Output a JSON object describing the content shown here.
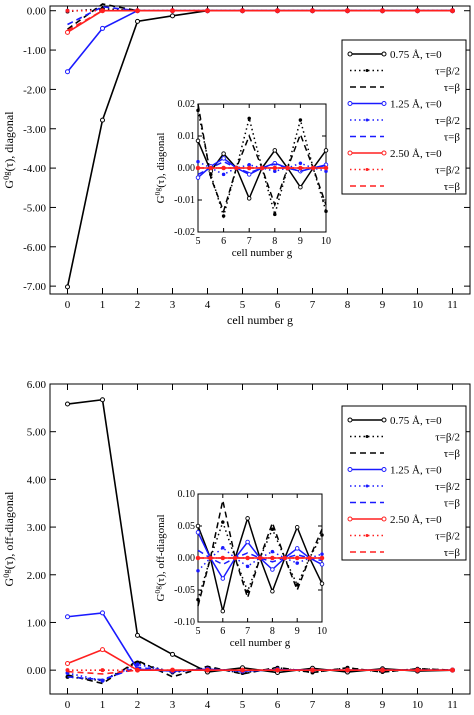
{
  "colors": {
    "black": "#000000",
    "blue": "#1a1aff",
    "red": "#ff2020"
  },
  "chart_data": [
    {
      "type": "line",
      "xlabel": "cell number g",
      "ylabel": "G^{0g}(τ), diagonal",
      "ylabel_parts": [
        "G",
        "0g",
        "(τ), diagonal"
      ],
      "xlim": [
        -0.5,
        11.5
      ],
      "ylim": [
        -7.2,
        0.12
      ],
      "xticks": [
        "0",
        "1",
        "2",
        "3",
        "4",
        "5",
        "6",
        "7",
        "8",
        "9",
        "10",
        "11"
      ],
      "yticks": [
        "0.00",
        "-1.00",
        "-2.00",
        "-3.00",
        "-4.00",
        "-5.00",
        "-6.00",
        "-7.00"
      ],
      "legend": [
        {
          "label": "0.75 Å, τ=0",
          "color": "#000000",
          "dash": "solid",
          "marker": "circle"
        },
        {
          "label": "τ=β/2",
          "color": "#000000",
          "dash": "dotted",
          "marker": "dot"
        },
        {
          "label": "τ=β",
          "color": "#000000",
          "dash": "dashed",
          "marker": "none"
        },
        {
          "label": "1.25 Å, τ=0",
          "color": "#1a1aff",
          "dash": "solid",
          "marker": "circle"
        },
        {
          "label": "τ=β/2",
          "color": "#1a1aff",
          "dash": "dotted",
          "marker": "dot"
        },
        {
          "label": "τ=β",
          "color": "#1a1aff",
          "dash": "dashed",
          "marker": "none"
        },
        {
          "label": "2.50 Å, τ=0",
          "color": "#ff2020",
          "dash": "solid",
          "marker": "circle"
        },
        {
          "label": "τ=β/2",
          "color": "#ff2020",
          "dash": "dotted",
          "marker": "dot"
        },
        {
          "label": "τ=β",
          "color": "#ff2020",
          "dash": "dashed",
          "marker": "none"
        }
      ],
      "x": [
        0,
        1,
        2,
        3,
        4,
        5,
        6,
        7,
        8,
        9,
        10,
        11
      ],
      "series": [
        {
          "color": "#000000",
          "dash": "solid",
          "values": [
            -7.02,
            -2.78,
            -0.27,
            -0.13,
            0.0,
            0.0,
            0.0,
            0.0,
            0.0,
            0.0,
            0.0,
            0.0
          ]
        },
        {
          "color": "#000000",
          "dash": "dotted",
          "values": [
            -0.02,
            0.05,
            0.0,
            0.0,
            0.0,
            0.0,
            0.0,
            0.0,
            0.0,
            0.0,
            0.0,
            0.0
          ]
        },
        {
          "color": "#000000",
          "dash": "dashed",
          "values": [
            -0.47,
            0.17,
            0.0,
            0.0,
            0.0,
            0.0,
            0.0,
            0.0,
            0.0,
            0.0,
            0.0,
            0.0
          ]
        },
        {
          "color": "#1a1aff",
          "dash": "solid",
          "values": [
            -1.55,
            -0.45,
            0.0,
            0.0,
            0.0,
            0.0,
            0.0,
            0.0,
            0.0,
            0.0,
            0.0,
            0.0
          ]
        },
        {
          "color": "#1a1aff",
          "dash": "dotted",
          "values": [
            0.0,
            0.0,
            0.0,
            0.0,
            0.0,
            0.0,
            0.0,
            0.0,
            0.0,
            0.0,
            0.0,
            0.0
          ]
        },
        {
          "color": "#1a1aff",
          "dash": "dashed",
          "values": [
            -0.35,
            0.1,
            0.0,
            0.0,
            0.0,
            0.0,
            0.0,
            0.0,
            0.0,
            0.0,
            0.0,
            0.0
          ]
        },
        {
          "color": "#ff2020",
          "dash": "solid",
          "values": [
            -0.55,
            0.0,
            0.0,
            0.0,
            0.0,
            0.0,
            0.0,
            0.0,
            0.0,
            0.0,
            0.0,
            0.0
          ]
        },
        {
          "color": "#ff2020",
          "dash": "dotted",
          "values": [
            0.0,
            0.0,
            0.0,
            0.0,
            0.0,
            0.0,
            0.0,
            0.0,
            0.0,
            0.0,
            0.0,
            0.0
          ]
        },
        {
          "color": "#ff2020",
          "dash": "dashed",
          "values": [
            -0.5,
            0.0,
            0.0,
            0.0,
            0.0,
            0.0,
            0.0,
            0.0,
            0.0,
            0.0,
            0.0,
            0.0
          ]
        }
      ],
      "inset": {
        "xlabel": "cell number g",
        "ylabel": "G^{0g}(τ), diagonal",
        "ylabel_parts": [
          "G",
          "0g",
          "(τ), diagonal"
        ],
        "xlim": [
          5,
          10
        ],
        "ylim": [
          -0.02,
          0.02
        ],
        "xticks": [
          "5",
          "6",
          "7",
          "8",
          "9",
          "10"
        ],
        "yticks": [
          "0.02",
          "0.01",
          "0.00",
          "-0.01",
          "-0.02"
        ],
        "x": [
          5,
          5.5,
          6,
          6.5,
          7,
          7.5,
          8,
          8.5,
          9,
          9.5,
          10
        ],
        "series": [
          {
            "color": "#000000",
            "dash": "solid",
            "values": [
              0.0085,
              -0.001,
              0.0045,
              0.0,
              -0.0095,
              0.0,
              0.0055,
              0.0,
              -0.006,
              0.0,
              0.0055
            ]
          },
          {
            "color": "#000000",
            "dash": "dotted",
            "values": [
              0.018,
              -0.002,
              -0.015,
              0.0,
              0.0155,
              0.0,
              -0.0145,
              0.0,
              0.015,
              0.0,
              -0.0135
            ]
          },
          {
            "color": "#000000",
            "dash": "dashed",
            "values": [
              0.02,
              -0.003,
              -0.0135,
              0.0,
              0.01,
              0.0,
              -0.0115,
              0.0,
              0.0105,
              0.0,
              -0.0115
            ]
          },
          {
            "color": "#1a1aff",
            "dash": "solid",
            "values": [
              -0.003,
              0.0005,
              0.003,
              0.0,
              -0.002,
              0.0,
              0.0015,
              0.0,
              -0.001,
              0.0,
              0.001
            ]
          },
          {
            "color": "#1a1aff",
            "dash": "dotted",
            "values": [
              0.002,
              0.0,
              -0.002,
              0.0,
              0.001,
              0.0,
              -0.001,
              0.0,
              0.0015,
              0.0,
              -0.001
            ]
          },
          {
            "color": "#1a1aff",
            "dash": "dashed",
            "values": [
              -0.002,
              0.0,
              0.002,
              0.0,
              -0.0015,
              0.0,
              0.0012,
              0.0,
              -0.001,
              0.0,
              0.0008
            ]
          },
          {
            "color": "#ff2020",
            "dash": "solid",
            "values": [
              0,
              0,
              0,
              0,
              0,
              0,
              0,
              0,
              0,
              0,
              0
            ]
          },
          {
            "color": "#ff2020",
            "dash": "dotted",
            "values": [
              0,
              0,
              0,
              0,
              0,
              0,
              0,
              0,
              0,
              0,
              0
            ]
          },
          {
            "color": "#ff2020",
            "dash": "dashed",
            "values": [
              0,
              0,
              0,
              0,
              0,
              0,
              0,
              0,
              0,
              0,
              0
            ]
          }
        ]
      }
    },
    {
      "type": "line",
      "xlabel": "cell number g",
      "ylabel": "G^{0g}(τ), off-diagonal",
      "ylabel_parts": [
        "G",
        "0g",
        "(τ), off-diagonal"
      ],
      "xlim": [
        -0.5,
        11.5
      ],
      "ylim": [
        -0.5,
        6.0
      ],
      "xticks": [
        "0",
        "1",
        "2",
        "3",
        "4",
        "5",
        "6",
        "7",
        "8",
        "9",
        "10",
        "11"
      ],
      "yticks": [
        "6.00",
        "5.00",
        "4.00",
        "3.00",
        "2.00",
        "1.00",
        "0.00"
      ],
      "legend": [
        {
          "label": "0.75 Å, τ=0",
          "color": "#000000",
          "dash": "solid",
          "marker": "circle"
        },
        {
          "label": "τ=β/2",
          "color": "#000000",
          "dash": "dotted",
          "marker": "dot"
        },
        {
          "label": "τ=β",
          "color": "#000000",
          "dash": "dashed",
          "marker": "none"
        },
        {
          "label": "1.25 Å, τ=0",
          "color": "#1a1aff",
          "dash": "solid",
          "marker": "circle"
        },
        {
          "label": "τ=β/2",
          "color": "#1a1aff",
          "dash": "dotted",
          "marker": "dot"
        },
        {
          "label": "τ=β",
          "color": "#1a1aff",
          "dash": "dashed",
          "marker": "none"
        },
        {
          "label": "2.50 Å, τ=0",
          "color": "#ff2020",
          "dash": "solid",
          "marker": "circle"
        },
        {
          "label": "τ=β/2",
          "color": "#ff2020",
          "dash": "dotted",
          "marker": "dot"
        },
        {
          "label": "τ=β",
          "color": "#ff2020",
          "dash": "dashed",
          "marker": "none"
        }
      ],
      "x": [
        0,
        1,
        2,
        3,
        4,
        5,
        6,
        7,
        8,
        9,
        10,
        11
      ],
      "series": [
        {
          "color": "#000000",
          "dash": "solid",
          "values": [
            5.58,
            5.67,
            0.73,
            0.33,
            -0.04,
            0.05,
            -0.05,
            0.04,
            -0.04,
            0.03,
            -0.02,
            0.0
          ]
        },
        {
          "color": "#000000",
          "dash": "dotted",
          "values": [
            -0.14,
            -0.22,
            0.16,
            -0.05,
            0.05,
            -0.06,
            0.05,
            -0.05,
            0.05,
            -0.04,
            0.03,
            0.0
          ]
        },
        {
          "color": "#000000",
          "dash": "dashed",
          "values": [
            -0.1,
            -0.28,
            0.2,
            -0.14,
            0.08,
            -0.08,
            0.06,
            -0.05,
            0.05,
            -0.04,
            0.03,
            0.0
          ]
        },
        {
          "color": "#1a1aff",
          "dash": "solid",
          "values": [
            1.12,
            1.2,
            0.02,
            -0.02,
            0.02,
            -0.02,
            0.01,
            0.0,
            0.0,
            0.0,
            0.0,
            0.0
          ]
        },
        {
          "color": "#1a1aff",
          "dash": "dotted",
          "values": [
            -0.06,
            -0.22,
            0.12,
            -0.03,
            0.02,
            -0.02,
            0.01,
            0.0,
            0.0,
            0.0,
            0.0,
            0.0
          ]
        },
        {
          "color": "#1a1aff",
          "dash": "dashed",
          "values": [
            -0.14,
            -0.2,
            0.06,
            -0.02,
            0.02,
            -0.01,
            0.01,
            0.0,
            0.0,
            0.0,
            0.0,
            0.0
          ]
        },
        {
          "color": "#ff2020",
          "dash": "solid",
          "values": [
            0.14,
            0.43,
            0.0,
            0.0,
            0.0,
            0.0,
            0.0,
            0.0,
            0.0,
            0.0,
            0.0,
            0.0
          ]
        },
        {
          "color": "#ff2020",
          "dash": "dotted",
          "values": [
            0.0,
            0.0,
            0.0,
            0.0,
            0.0,
            0.0,
            0.0,
            0.0,
            0.0,
            0.0,
            0.0,
            0.0
          ]
        },
        {
          "color": "#ff2020",
          "dash": "dashed",
          "values": [
            -0.03,
            -0.08,
            0.0,
            0.0,
            0.0,
            0.0,
            0.0,
            0.0,
            0.0,
            0.0,
            0.0,
            0.0
          ]
        }
      ],
      "inset": {
        "xlabel": "cell number g",
        "ylabel": "G^{0g}(τ), off-diagonal",
        "ylabel_parts": [
          "G",
          "0g",
          "(τ), off-diagonal"
        ],
        "xlim": [
          5,
          10
        ],
        "ylim": [
          -0.1,
          0.1
        ],
        "xticks": [
          "5",
          "6",
          "7",
          "8",
          "9",
          "10"
        ],
        "yticks": [
          "0.10",
          "0.05",
          "0.00",
          "-0.05",
          "-0.10"
        ],
        "x": [
          5,
          5.5,
          6,
          6.5,
          7,
          7.5,
          8,
          8.5,
          9,
          9.5,
          10
        ],
        "series": [
          {
            "color": "#000000",
            "dash": "solid",
            "values": [
              0.05,
              0.0,
              -0.083,
              0.0,
              0.062,
              0.0,
              -0.052,
              0.0,
              0.048,
              0.0,
              -0.04
            ]
          },
          {
            "color": "#000000",
            "dash": "dotted",
            "values": [
              -0.065,
              0.0,
              0.056,
              0.0,
              -0.052,
              0.0,
              0.045,
              0.0,
              -0.042,
              0.0,
              0.036
            ]
          },
          {
            "color": "#000000",
            "dash": "dashed",
            "values": [
              -0.075,
              0.0,
              0.09,
              0.0,
              -0.062,
              0.0,
              0.055,
              0.0,
              -0.05,
              0.0,
              0.045
            ]
          },
          {
            "color": "#1a1aff",
            "dash": "solid",
            "values": [
              0.04,
              0.0,
              -0.032,
              0.0,
              0.025,
              0.0,
              -0.018,
              0.0,
              0.015,
              0.0,
              -0.01
            ]
          },
          {
            "color": "#1a1aff",
            "dash": "dotted",
            "values": [
              -0.02,
              0.0,
              0.016,
              0.0,
              -0.013,
              0.0,
              0.01,
              0.0,
              -0.008,
              0.0,
              0.006
            ]
          },
          {
            "color": "#1a1aff",
            "dash": "dashed",
            "values": [
              0.012,
              0.0,
              -0.01,
              0.0,
              0.008,
              0.0,
              -0.006,
              0.0,
              0.005,
              0.0,
              -0.004
            ]
          },
          {
            "color": "#ff2020",
            "dash": "solid",
            "values": [
              0,
              0,
              0,
              0,
              0,
              0,
              0,
              0,
              0,
              0,
              0
            ]
          },
          {
            "color": "#ff2020",
            "dash": "dotted",
            "values": [
              0,
              0,
              0,
              0,
              0,
              0,
              0,
              0,
              0,
              0,
              0
            ]
          },
          {
            "color": "#ff2020",
            "dash": "dashed",
            "values": [
              0,
              0,
              0,
              0,
              0,
              0,
              0,
              0,
              0,
              0,
              0
            ]
          }
        ]
      }
    }
  ]
}
